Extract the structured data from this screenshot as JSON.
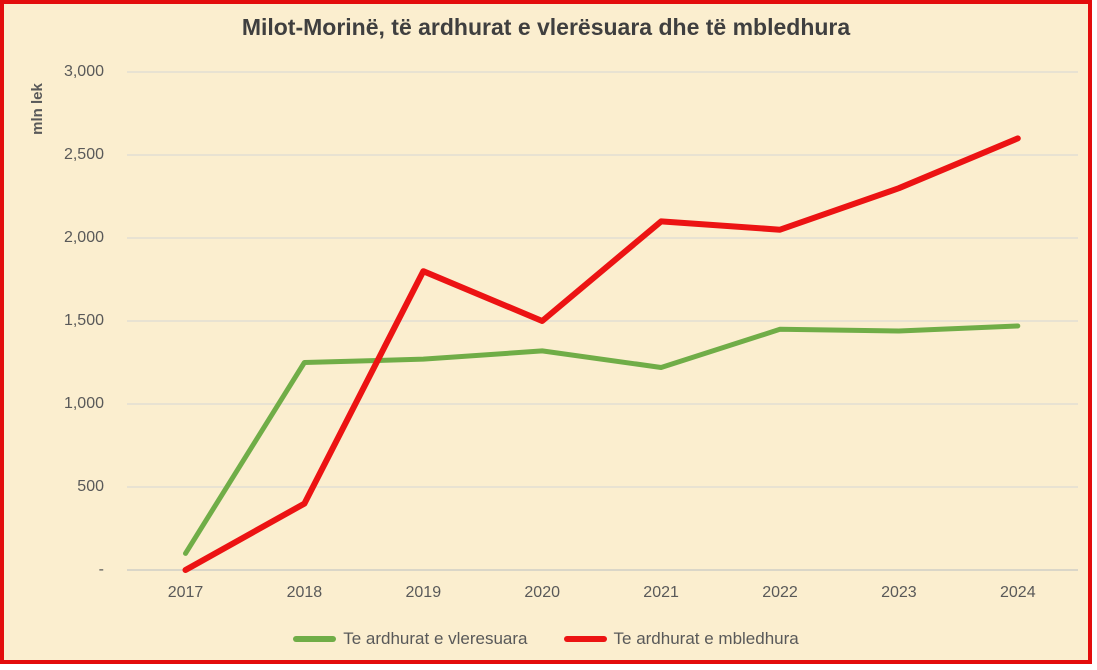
{
  "chart": {
    "background_color": "#fbeecf",
    "frame_border_color": "#e30c0c",
    "grid_color": "#dddbd4",
    "axis_line_color": "#cfcdc6",
    "title_color": "#3f3f3f",
    "tick_color": "#595959"
  },
  "chart_data": {
    "type": "line",
    "title": "Milot-Morinë, të ardhurat e vlerësuara dhe të mbledhura",
    "xlabel": "",
    "ylabel": "mln lek",
    "categories": [
      "2017",
      "2018",
      "2019",
      "2020",
      "2021",
      "2022",
      "2023",
      "2024"
    ],
    "series": [
      {
        "name": "Te ardhurat e vleresuara",
        "color": "#70ad47",
        "stroke_width": 5,
        "values": [
          100,
          1250,
          1270,
          1320,
          1220,
          1450,
          1440,
          1470
        ]
      },
      {
        "name": "Te ardhurat e mbledhura",
        "color": "#ec1313",
        "stroke_width": 6,
        "values": [
          0,
          400,
          1800,
          1500,
          2100,
          2050,
          2300,
          2600
        ]
      }
    ],
    "ylim": [
      0,
      3000
    ],
    "y_ticks": [
      {
        "value": 3000,
        "label": "3,000"
      },
      {
        "value": 2500,
        "label": "2,500"
      },
      {
        "value": 2000,
        "label": "2,000"
      },
      {
        "value": 1500,
        "label": "1,500"
      },
      {
        "value": 1000,
        "label": "1,000"
      },
      {
        "value": 500,
        "label": "500"
      },
      {
        "value": 0,
        "label": "-"
      }
    ],
    "grid": true,
    "legend_position": "bottom"
  }
}
